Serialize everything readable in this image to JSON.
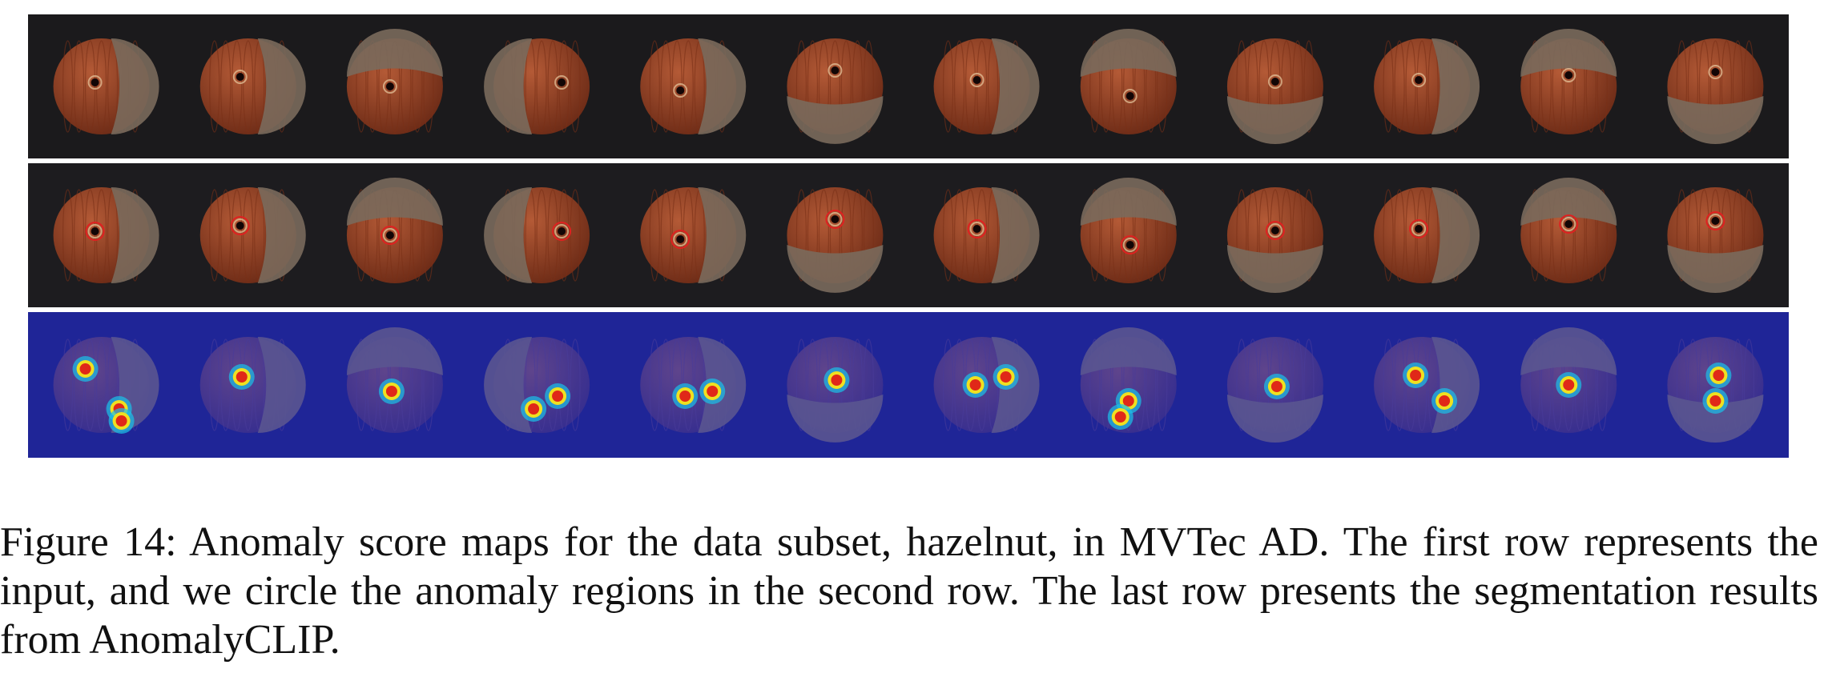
{
  "figure": {
    "rows": [
      {
        "id": "input",
        "name": "input-row"
      },
      {
        "id": "circled",
        "name": "circled-anomaly-row"
      },
      {
        "id": "heat",
        "name": "segmentation-row"
      }
    ],
    "samples": 12,
    "colors": {
      "dark_background": "#1b1a1c",
      "heatmap_background": "#1f2597",
      "hazelnut_body": "#8a3a22",
      "hazelnut_cap": "#7a6a5c",
      "circle_mark": "#e02020"
    }
  },
  "caption": {
    "text": "Figure 14: Anomaly score maps for the data subset, hazelnut, in MVTec AD. The first row represents the input, and we circle the anomaly regions in the second row. The last row presents the segmentation results from AnomalyCLIP."
  }
}
